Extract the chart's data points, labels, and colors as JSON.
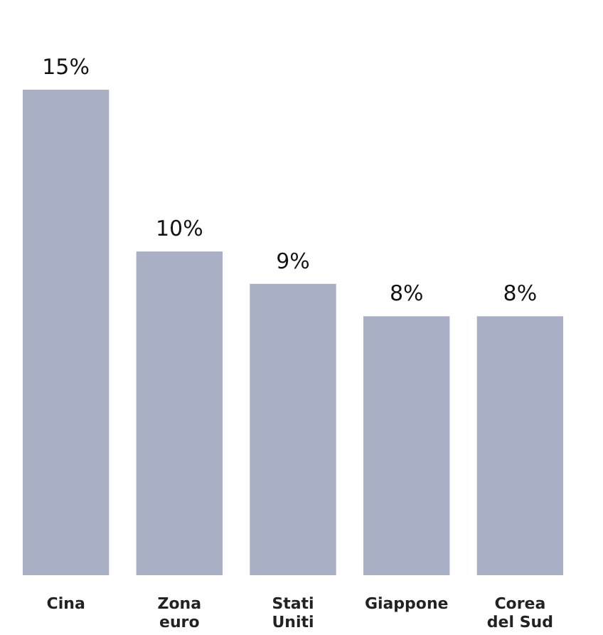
{
  "chart_data": {
    "type": "bar",
    "categories": [
      "Cina",
      "Zona euro",
      "Stati Uniti",
      "Giappone",
      "Corea del Sud"
    ],
    "values": [
      15,
      10,
      9,
      8,
      8
    ],
    "value_labels": [
      "15%",
      "10%",
      "9%",
      "8%",
      "8%"
    ],
    "color": "#a9b0c6"
  }
}
